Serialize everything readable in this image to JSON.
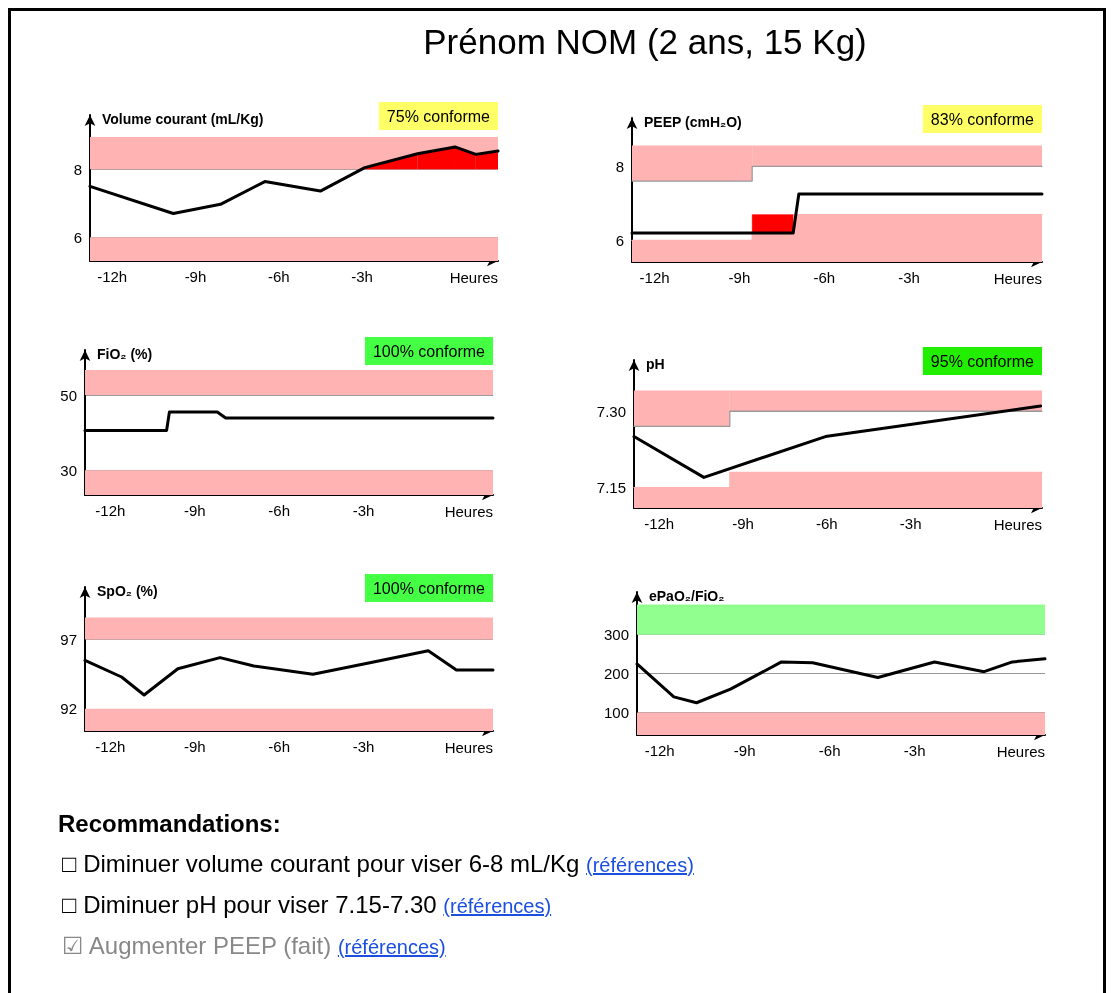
{
  "chart_data": [
    {
      "type": "other",
      "title": "Prénom NOM (2 ans, 15 Kg)"
    },
    {
      "type": "line",
      "ylabel": "Volume courant (mL/Kg)",
      "xlabel": "Heures",
      "annotations": [
        "75% conforme"
      ],
      "xlim": [
        -12.8,
        1.9
      ],
      "xticks": [
        {
          "value": -12,
          "label": "-12h"
        },
        {
          "value": -9,
          "label": "-9h"
        },
        {
          "value": -6,
          "label": "-6h"
        },
        {
          "value": -3,
          "label": "-3h"
        }
      ],
      "ylim": [
        5.3,
        9.6
      ],
      "yticks": [
        6,
        8
      ],
      "grid": "y",
      "marker": "none",
      "bands": [
        {
          "axis": "y",
          "from": 8,
          "to": 8.95,
          "color": "#ffb3b3"
        },
        {
          "axis": "y",
          "from": 5.3,
          "to": 6,
          "color": "#ffb3b3"
        }
      ],
      "series": [
        {
          "type": "line",
          "color": "#000000",
          "x": [
            -12.8,
            -9.8,
            -8.1,
            -6.5,
            -4.5,
            -2.9,
            -1.0,
            0.35,
            1.1,
            1.9
          ],
          "values": [
            7.5,
            6.7,
            6.97,
            7.64,
            7.36,
            8.05,
            8.46,
            8.66,
            8.44,
            8.54
          ],
          "lower": [
            null,
            null,
            null,
            null,
            null,
            8,
            8,
            8,
            8,
            8
          ],
          "upper": [
            null,
            null,
            null,
            null,
            null,
            8.05,
            8.46,
            8.66,
            8.44,
            8.54
          ]
        }
      ]
    },
    {
      "type": "line",
      "ylabel": "PEEP (cmH₂O)",
      "xlabel": "Heures",
      "annotations": [
        "83% conforme"
      ],
      "xlim": [
        -12.8,
        1.7
      ],
      "xticks": [
        {
          "value": -12,
          "label": "-12h"
        },
        {
          "value": -9,
          "label": "-9h"
        },
        {
          "value": -6,
          "label": "-6h"
        },
        {
          "value": -3,
          "label": "-3h"
        }
      ],
      "ylim": [
        5.42,
        9.3
      ],
      "yticks": [
        6,
        8
      ],
      "grid": "y",
      "marker": "none",
      "series": [
        {
          "type": "line",
          "color": "#000000",
          "x": [
            -12.8,
            -8.55,
            -7.1,
            -6.9,
            1.7
          ],
          "values": [
            6.2,
            6.2,
            6.2,
            7.25,
            7.25
          ],
          "lower": [
            null,
            6.2,
            6.2,
            null,
            null
          ],
          "upper": [
            null,
            6.7,
            6.7,
            null,
            null
          ]
        },
        {
          "type": "line",
          "color": "#999999",
          "x": [
            -12.8,
            -8.55,
            -8.55,
            1.7
          ],
          "values": [
            7.6,
            7.6,
            8,
            8
          ],
          "lower": [
            7.6,
            7.6,
            8,
            8
          ],
          "upper": [
            8.56,
            8.56,
            8.56,
            8.56
          ]
        },
        {
          "type": "area",
          "color": "#ffb3b3",
          "x": [
            -12.8,
            -8.55,
            -8.55,
            1.7
          ],
          "values": [
            6,
            6,
            6.7,
            6.7
          ]
        }
      ]
    },
    {
      "type": "line",
      "ylabel": "FiO₂ (%)",
      "xlabel": "Heures",
      "annotations": [
        "100% conforme"
      ],
      "xlim": [
        -12.9,
        1.6
      ],
      "xticks": [
        {
          "value": -12,
          "label": "-12h"
        },
        {
          "value": -9,
          "label": "-9h"
        },
        {
          "value": -6,
          "label": "-6h"
        },
        {
          "value": -3,
          "label": "-3h"
        }
      ],
      "ylim": [
        23.4,
        62
      ],
      "yticks": [
        30,
        50
      ],
      "grid": "y",
      "marker": "none",
      "bands": [
        {
          "axis": "y",
          "from": 50,
          "to": 56.7,
          "color": "#ffb3b3"
        },
        {
          "axis": "y",
          "from": 23.4,
          "to": 30,
          "color": "#ffb3b3"
        }
      ],
      "series": [
        {
          "type": "line",
          "color": "#000000",
          "x": [
            -12.9,
            -10.0,
            -9.9,
            -8.2,
            -7.9,
            1.6
          ],
          "values": [
            40.6,
            40.6,
            45.5,
            45.5,
            43.9,
            43.9
          ]
        }
      ]
    },
    {
      "type": "line",
      "ylabel": "pH",
      "xlabel": "Heures",
      "annotations": [
        "95% conforme"
      ],
      "xlim": [
        -12.9,
        1.7
      ],
      "xticks": [
        {
          "value": -12,
          "label": "-12h"
        },
        {
          "value": -9,
          "label": "-9h"
        },
        {
          "value": -6,
          "label": "-6h"
        },
        {
          "value": -3,
          "label": "-3h"
        }
      ],
      "ylim": [
        7.11,
        7.4
      ],
      "yticks": [
        7.15,
        {
          "value": 7.3,
          "label": "7.30"
        }
      ],
      "grid": "y",
      "marker": "none",
      "series": [
        {
          "type": "line",
          "color": "#000000",
          "x": [
            -12.9,
            -10.4,
            -6.05,
            1.65
          ],
          "values": [
            7.25,
            7.17,
            7.25,
            7.31
          ]
        },
        {
          "type": "line",
          "color": "#999999",
          "x": [
            -12.9,
            -9.47,
            -9.47,
            1.7
          ],
          "values": [
            7.27,
            7.27,
            7.3,
            7.3
          ],
          "lower": [
            7.27,
            7.27,
            7.3,
            7.3
          ],
          "upper": [
            7.34,
            7.34,
            7.34,
            7.34
          ]
        },
        {
          "type": "area",
          "color": "#ffb3b3",
          "x": [
            -12.9,
            -9.47,
            -9.47,
            1.7
          ],
          "values": [
            7.15,
            7.15,
            7.18,
            7.18
          ]
        }
      ]
    },
    {
      "type": "line",
      "ylabel": "SpO₂ (%)",
      "xlabel": "Heures",
      "annotations": [
        "100% conforme"
      ],
      "xlim": [
        -12.9,
        1.6
      ],
      "xticks": [
        {
          "value": -12,
          "label": "-12h"
        },
        {
          "value": -9,
          "label": "-9h"
        },
        {
          "value": -6,
          "label": "-6h"
        },
        {
          "value": -3,
          "label": "-3h"
        }
      ],
      "ylim": [
        90.4,
        100.8
      ],
      "yticks": [
        92,
        97
      ],
      "grid": "y",
      "marker": "none",
      "bands": [
        {
          "axis": "y",
          "from": 97,
          "to": 98.6,
          "color": "#ffb3b3"
        },
        {
          "axis": "y",
          "from": 90.4,
          "to": 92,
          "color": "#ffb3b3"
        }
      ],
      "series": [
        {
          "type": "line",
          "color": "#000000",
          "x": [
            -12.9,
            -11.6,
            -10.8,
            -9.6,
            -8.1,
            -6.9,
            -4.8,
            -2.6,
            -0.7,
            0.3,
            1.6
          ],
          "values": [
            95.5,
            94.3,
            93.0,
            94.9,
            95.7,
            95.1,
            94.5,
            95.4,
            96.2,
            94.8,
            94.8
          ]
        }
      ]
    },
    {
      "type": "line",
      "ylabel": "ePaO₂/FiO₂",
      "xlabel": "Heures",
      "xlim": [
        -12.8,
        1.6
      ],
      "xticks": [
        {
          "value": -12,
          "label": "-12h"
        },
        {
          "value": -9,
          "label": "-9h"
        },
        {
          "value": -6,
          "label": "-6h"
        },
        {
          "value": -3,
          "label": "-3h"
        }
      ],
      "ylim": [
        42,
        410
      ],
      "yticks": [
        100,
        200,
        300
      ],
      "grid": "y",
      "marker": "none",
      "bands": [
        {
          "axis": "y",
          "from": 300,
          "to": 378,
          "color": "#90ff90"
        },
        {
          "axis": "y",
          "from": 42,
          "to": 100,
          "color": "#ffb3b3"
        }
      ],
      "series": [
        {
          "type": "line",
          "color": "#000000",
          "x": [
            -12.8,
            -11.5,
            -10.7,
            -9.5,
            -7.7,
            -6.6,
            -4.3,
            -2.3,
            -0.55,
            0.45,
            1.6
          ],
          "values": [
            225,
            140,
            125,
            160,
            230,
            228,
            190,
            230,
            205,
            230,
            238
          ]
        }
      ]
    },
    {
      "type": "other",
      "title": "Recommandations:",
      "annotations": [
        "□ Diminuer volume courant pour viser 6-8 mL/Kg",
        "(références)",
        "□ Diminuer pH pour viser 7.15-7.30",
        "(références)",
        "☑ Augmenter PEEP (fait)",
        "(références)"
      ]
    }
  ]
}
